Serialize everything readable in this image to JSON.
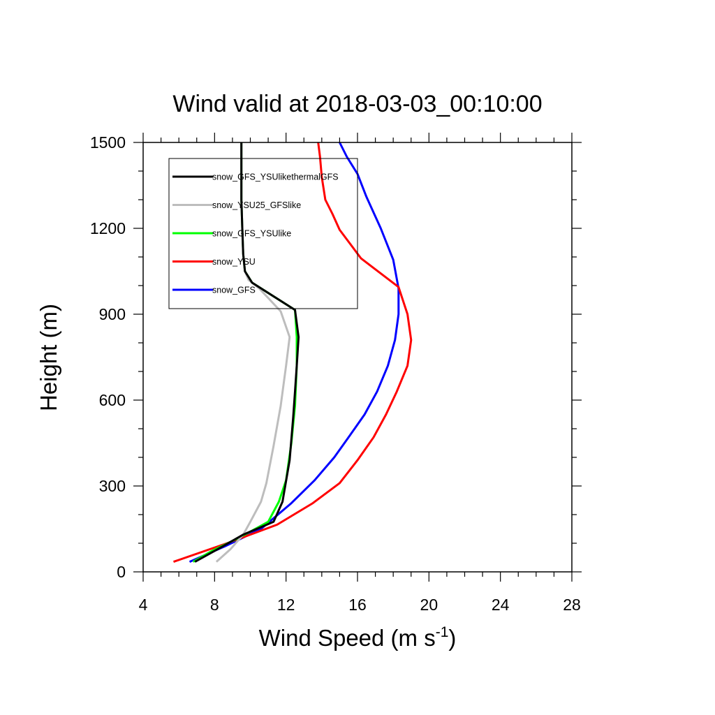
{
  "chart_data": {
    "type": "line",
    "title": "Wind valid at 2018-03-03_00:10:00",
    "xlabel": {
      "main": "Wind Speed (m s",
      "sup": "-1",
      "close": ")"
    },
    "ylabel": "Height (m)",
    "xlim": [
      4,
      28
    ],
    "ylim": [
      0,
      1500
    ],
    "x_ticks": [
      4,
      8,
      12,
      16,
      20,
      24,
      28
    ],
    "y_ticks": [
      0,
      300,
      600,
      900,
      1200,
      1500
    ],
    "grid": false,
    "legend_position": "top-left",
    "series": [
      {
        "name": "snow_GFS_YSUlikethermalGFS",
        "color": "#000000",
        "points": [
          [
            6.9,
            35
          ],
          [
            8.2,
            80
          ],
          [
            9.6,
            130
          ],
          [
            11.3,
            175
          ],
          [
            11.8,
            245
          ],
          [
            12.2,
            390
          ],
          [
            12.4,
            540
          ],
          [
            12.5,
            630
          ],
          [
            12.6,
            720
          ],
          [
            12.7,
            820
          ],
          [
            12.5,
            915
          ],
          [
            10.1,
            1010
          ],
          [
            9.7,
            1050
          ],
          [
            9.6,
            1110
          ],
          [
            9.55,
            1200
          ],
          [
            9.5,
            1300
          ],
          [
            9.5,
            1400
          ],
          [
            9.5,
            1500
          ]
        ]
      },
      {
        "name": "snow_YSU25_GFSlike",
        "color": "#bdbdbd",
        "points": [
          [
            8.1,
            35
          ],
          [
            8.9,
            80
          ],
          [
            9.6,
            130
          ],
          [
            10.0,
            175
          ],
          [
            10.6,
            245
          ],
          [
            10.9,
            310
          ],
          [
            11.3,
            440
          ],
          [
            11.7,
            580
          ],
          [
            12.0,
            720
          ],
          [
            12.2,
            820
          ],
          [
            11.7,
            910
          ],
          [
            10.5,
            990
          ],
          [
            9.9,
            1020
          ],
          [
            9.7,
            1050
          ],
          [
            9.6,
            1110
          ],
          [
            9.55,
            1200
          ],
          [
            9.5,
            1300
          ],
          [
            9.5,
            1400
          ],
          [
            9.5,
            1500
          ]
        ]
      },
      {
        "name": "snow_GFS_YSUlike",
        "color": "#00ff00",
        "points": [
          [
            6.8,
            35
          ],
          [
            7.9,
            75
          ],
          [
            9.4,
            120
          ],
          [
            11.0,
            175
          ],
          [
            11.6,
            245
          ],
          [
            12.0,
            320
          ],
          [
            12.3,
            450
          ],
          [
            12.5,
            580
          ],
          [
            12.6,
            720
          ],
          [
            12.6,
            820
          ],
          [
            12.5,
            915
          ],
          [
            10.1,
            1010
          ],
          [
            9.7,
            1050
          ],
          [
            9.6,
            1110
          ],
          [
            9.55,
            1200
          ],
          [
            9.5,
            1300
          ],
          [
            9.5,
            1400
          ],
          [
            9.5,
            1500
          ]
        ]
      },
      {
        "name": "snow_YSU",
        "color": "#ff0000",
        "points": [
          [
            5.7,
            35
          ],
          [
            8.7,
            100
          ],
          [
            11.5,
            165
          ],
          [
            13.5,
            240
          ],
          [
            15.0,
            310
          ],
          [
            16.0,
            390
          ],
          [
            16.9,
            470
          ],
          [
            17.6,
            550
          ],
          [
            18.2,
            630
          ],
          [
            18.8,
            720
          ],
          [
            19.0,
            810
          ],
          [
            18.8,
            900
          ],
          [
            18.3,
            995
          ],
          [
            16.2,
            1095
          ],
          [
            15.0,
            1195
          ],
          [
            14.6,
            1250
          ],
          [
            14.2,
            1300
          ],
          [
            14.0,
            1380
          ],
          [
            13.9,
            1450
          ],
          [
            13.8,
            1500
          ]
        ]
      },
      {
        "name": "snow_GFS",
        "color": "#0000ff",
        "points": [
          [
            6.6,
            35
          ],
          [
            8.6,
            90
          ],
          [
            10.6,
            150
          ],
          [
            12.3,
            240
          ],
          [
            13.6,
            320
          ],
          [
            14.7,
            400
          ],
          [
            15.5,
            470
          ],
          [
            16.4,
            550
          ],
          [
            17.1,
            630
          ],
          [
            17.7,
            720
          ],
          [
            18.1,
            810
          ],
          [
            18.3,
            900
          ],
          [
            18.3,
            990
          ],
          [
            18.0,
            1090
          ],
          [
            17.3,
            1200
          ],
          [
            16.5,
            1310
          ],
          [
            16.0,
            1390
          ],
          [
            15.4,
            1450
          ],
          [
            15.0,
            1500
          ]
        ]
      }
    ]
  }
}
